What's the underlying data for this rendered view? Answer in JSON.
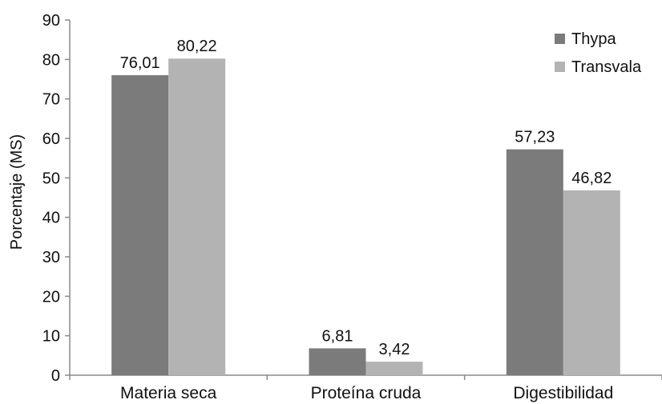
{
  "chart_data": {
    "type": "bar",
    "title": "",
    "xlabel": "",
    "ylabel": "Porcentaje (MS)",
    "ylim": [
      0,
      90
    ],
    "yticks": [
      0,
      10,
      20,
      30,
      40,
      50,
      60,
      70,
      80,
      90
    ],
    "categories": [
      "Materia seca",
      "Proteína cruda",
      "Digestibilidad"
    ],
    "series": [
      {
        "name": "Thypa",
        "color": "#7b7b7b",
        "values": [
          76.01,
          6.81,
          57.23
        ],
        "labels": [
          "76,01",
          "6,81",
          "57,23"
        ]
      },
      {
        "name": "Transvala",
        "color": "#b3b3b3",
        "values": [
          80.22,
          3.42,
          46.82
        ],
        "labels": [
          "80,22",
          "3,42",
          "46,82"
        ]
      }
    ],
    "legend_position": "top-right",
    "grid": false
  }
}
